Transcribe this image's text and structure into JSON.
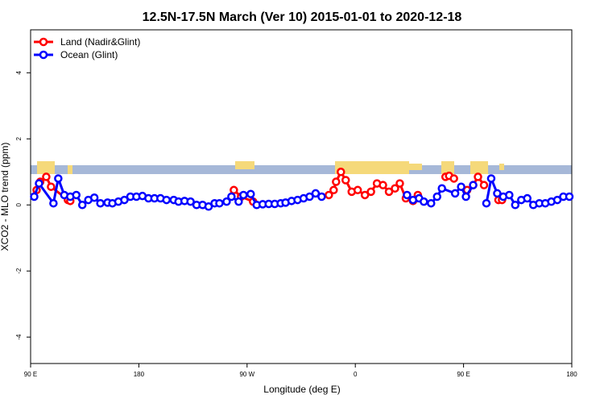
{
  "chart_data": {
    "type": "line",
    "title": "12.5N-17.5N March (Ver 10)   2015-01-01 to 2020-12-18",
    "x_label": "Longitude (deg E)",
    "y_label": "XCO2 - MLO trend (ppm)",
    "xlim": [
      90,
      540
    ],
    "xticks": [
      {
        "value": 90,
        "label": "90 E"
      },
      {
        "value": 180,
        "label": "180"
      },
      {
        "value": 270,
        "label": "90 W"
      },
      {
        "value": 360,
        "label": "0"
      },
      {
        "value": 450,
        "label": "90 E"
      },
      {
        "value": 540,
        "label": "180"
      }
    ],
    "ylim": [
      -4.8,
      5.3
    ],
    "yticks": [
      -4,
      -2,
      0,
      2,
      4
    ],
    "legend": "top-left",
    "series": [
      {
        "name": "Land (Nadir&Glint)",
        "color": "#ff0000",
        "x": [
          95,
          98,
          103,
          107,
          121,
          123,
          null,
          259,
          265,
          275,
          null,
          338,
          342,
          344,
          348,
          352,
          357,
          362,
          368,
          373,
          378,
          383,
          388,
          393,
          397,
          402,
          408,
          412,
          null,
          435,
          438,
          442,
          null,
          453,
          458,
          462,
          467,
          null,
          479,
          482
        ],
        "values": [
          0.45,
          0.7,
          0.85,
          0.55,
          0.15,
          0.12,
          null,
          0.45,
          0.25,
          0.1,
          null,
          0.3,
          0.45,
          0.7,
          1.0,
          0.75,
          0.4,
          0.45,
          0.3,
          0.4,
          0.65,
          0.6,
          0.4,
          0.5,
          0.65,
          0.2,
          0.12,
          0.3,
          null,
          0.85,
          0.88,
          0.8,
          null,
          0.45,
          0.6,
          0.85,
          0.6,
          null,
          0.15,
          0.15
        ]
      },
      {
        "name": "Ocean (Glint)",
        "color": "#0000ff",
        "x": [
          93,
          97,
          109,
          113,
          118,
          123,
          128,
          133,
          138,
          143,
          148,
          154,
          158,
          163,
          168,
          173,
          178,
          183,
          188,
          193,
          198,
          203,
          209,
          213,
          218,
          223,
          228,
          233,
          238,
          243,
          247,
          253,
          257,
          263,
          267,
          273,
          278,
          283,
          288,
          293,
          298,
          302,
          307,
          312,
          317,
          322,
          327,
          332,
          null,
          403,
          408,
          413,
          417,
          423,
          428,
          432,
          443,
          448,
          452,
          458,
          null,
          469,
          473,
          478,
          483,
          488,
          493,
          498,
          503,
          508,
          513,
          518,
          523,
          528,
          533,
          538
        ],
        "values": [
          0.25,
          0.65,
          0.05,
          0.8,
          0.3,
          0.25,
          0.3,
          0.0,
          0.15,
          0.22,
          0.05,
          0.07,
          0.05,
          0.1,
          0.15,
          0.25,
          0.25,
          0.27,
          0.2,
          0.2,
          0.2,
          0.15,
          0.15,
          0.1,
          0.12,
          0.1,
          0.0,
          0.0,
          -0.05,
          0.05,
          0.05,
          0.1,
          0.25,
          0.1,
          0.3,
          0.33,
          0.0,
          0.02,
          0.03,
          0.03,
          0.05,
          0.07,
          0.12,
          0.15,
          0.2,
          0.25,
          0.35,
          0.25,
          null,
          0.3,
          0.15,
          0.2,
          0.1,
          0.05,
          0.25,
          0.5,
          0.35,
          0.55,
          0.25,
          0.6,
          null,
          0.05,
          0.8,
          0.35,
          0.25,
          0.3,
          0.0,
          0.15,
          0.2,
          0.0,
          0.05,
          0.05,
          0.1,
          0.15,
          0.25,
          0.25
        ]
      }
    ]
  }
}
